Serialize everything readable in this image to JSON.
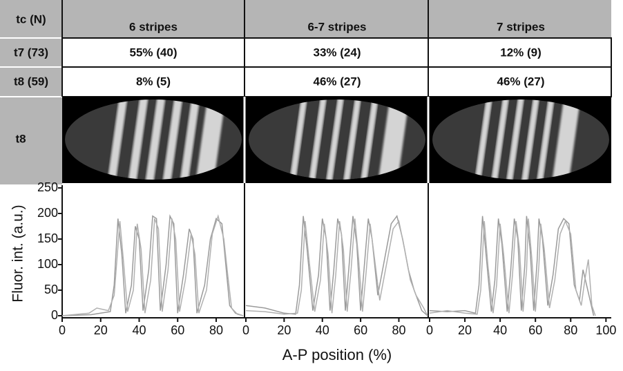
{
  "table": {
    "header": [
      "tc (N)",
      "6 stripes",
      "6-7 stripes",
      "7 stripes"
    ],
    "rows": [
      [
        "t7 (73)",
        "55% (40)",
        "33% (24)",
        "12% (9)"
      ],
      [
        "t8 (59)",
        "8% (5)",
        "46% (27)",
        "46% (27)"
      ]
    ],
    "image_row_label": "t8"
  },
  "chart_data": [
    {
      "type": "line",
      "ylabel": "Fluor. int. (a.u.)",
      "xlim": [
        0,
        94
      ],
      "xticks": [
        0,
        20,
        40,
        60,
        80
      ],
      "ylim": [
        0,
        250
      ],
      "yticks": [
        0,
        50,
        100,
        150,
        200,
        250
      ],
      "series": [
        {
          "color": "#9a9a9a",
          "x": [
            0,
            15,
            20,
            25,
            27,
            29,
            31,
            33,
            36,
            38,
            40,
            42,
            45,
            47,
            49,
            51,
            54,
            56,
            58,
            60,
            63,
            66,
            68,
            70,
            74,
            77,
            80,
            83,
            85,
            87,
            90,
            94
          ],
          "values": [
            0,
            2,
            5,
            8,
            60,
            190,
            120,
            5,
            60,
            175,
            150,
            10,
            90,
            195,
            190,
            10,
            100,
            195,
            180,
            5,
            80,
            170,
            150,
            5,
            60,
            150,
            190,
            180,
            100,
            20,
            5,
            0
          ]
        },
        {
          "color": "#b0b0b0",
          "x": [
            0,
            14,
            18,
            24,
            27,
            30,
            32,
            34,
            37,
            39,
            41,
            43,
            46,
            48,
            50,
            52,
            55,
            57,
            59,
            61,
            64,
            67,
            69,
            71,
            75,
            78,
            81,
            84,
            86,
            88,
            91,
            94
          ],
          "values": [
            0,
            5,
            15,
            10,
            40,
            185,
            100,
            8,
            50,
            180,
            130,
            5,
            70,
            190,
            170,
            8,
            90,
            190,
            150,
            8,
            70,
            160,
            120,
            5,
            50,
            160,
            195,
            150,
            80,
            15,
            3,
            0
          ]
        }
      ]
    },
    {
      "type": "line",
      "xlabel": "A-P position (%)",
      "xlim": [
        0,
        95
      ],
      "xticks": [
        0,
        20,
        40,
        60,
        80
      ],
      "ylim": [
        0,
        250
      ],
      "series": [
        {
          "color": "#9a9a9a",
          "x": [
            0,
            10,
            20,
            26,
            28,
            30,
            32,
            35,
            38,
            40,
            42,
            44,
            46,
            48,
            50,
            52,
            54,
            56,
            58,
            60,
            62,
            64,
            66,
            69,
            73,
            76,
            79,
            82,
            85,
            88,
            92,
            95
          ],
          "values": [
            20,
            15,
            5,
            3,
            60,
            195,
            130,
            10,
            80,
            190,
            150,
            10,
            90,
            190,
            160,
            10,
            100,
            195,
            140,
            10,
            100,
            190,
            150,
            40,
            120,
            180,
            195,
            150,
            90,
            50,
            10,
            0
          ]
        },
        {
          "color": "#b0b0b0",
          "x": [
            0,
            10,
            20,
            27,
            29,
            31,
            33,
            36,
            39,
            41,
            43,
            45,
            47,
            49,
            51,
            53,
            55,
            57,
            59,
            61,
            63,
            65,
            67,
            70,
            74,
            77,
            80,
            83,
            86,
            89,
            93,
            95
          ],
          "values": [
            10,
            8,
            3,
            5,
            50,
            185,
            110,
            8,
            70,
            180,
            120,
            5,
            80,
            185,
            130,
            8,
            90,
            190,
            110,
            8,
            90,
            180,
            120,
            30,
            110,
            170,
            185,
            130,
            70,
            40,
            15,
            0
          ]
        }
      ]
    },
    {
      "type": "line",
      "xlim": [
        0,
        103
      ],
      "xticks": [
        0,
        20,
        40,
        60,
        80,
        100
      ],
      "ylim": [
        0,
        250
      ],
      "series": [
        {
          "color": "#9a9a9a",
          "x": [
            0,
            10,
            20,
            26,
            28,
            30,
            32,
            35,
            37,
            39,
            41,
            44,
            46,
            48,
            50,
            52,
            54,
            55,
            57,
            59,
            61,
            62,
            64,
            67,
            70,
            73,
            76,
            79,
            82,
            85,
            87,
            89,
            91,
            93
          ],
          "values": [
            10,
            8,
            10,
            5,
            60,
            195,
            120,
            8,
            70,
            190,
            140,
            8,
            90,
            190,
            150,
            10,
            100,
            195,
            130,
            10,
            110,
            190,
            150,
            20,
            80,
            170,
            190,
            180,
            60,
            30,
            90,
            60,
            30,
            0
          ]
        },
        {
          "color": "#b0b0b0",
          "x": [
            0,
            10,
            20,
            27,
            29,
            31,
            33,
            36,
            38,
            40,
            42,
            45,
            47,
            49,
            51,
            53,
            55,
            56,
            58,
            60,
            62,
            63,
            65,
            68,
            71,
            74,
            77,
            80,
            83,
            86,
            88,
            90,
            92,
            94
          ],
          "values": [
            5,
            10,
            5,
            3,
            50,
            185,
            100,
            5,
            60,
            180,
            120,
            5,
            80,
            185,
            130,
            8,
            90,
            190,
            110,
            8,
            100,
            180,
            130,
            15,
            70,
            160,
            185,
            160,
            50,
            20,
            70,
            110,
            20,
            0
          ]
        }
      ]
    }
  ]
}
